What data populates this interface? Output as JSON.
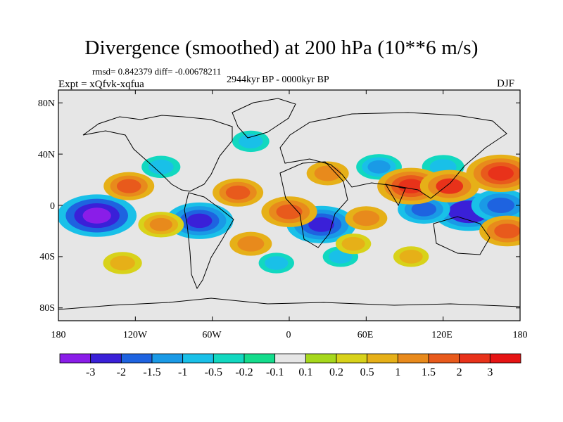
{
  "title": "Divergence (smoothed) at 200 hPa (10**6 m/s)",
  "stats": "rmsd= 0.842379 diff= -0.00678211",
  "experiment": "Expt = xQfvk-xqfua",
  "period": "2944kyr BP - 0000kyr BP",
  "season": "DJF",
  "lat_labels": [
    "80N",
    "40N",
    "0",
    "40S",
    "80S"
  ],
  "lon_labels": [
    "180",
    "120W",
    "60W",
    "0",
    "60E",
    "120E",
    "180"
  ],
  "colorbar": {
    "labels": [
      "-3",
      "-2",
      "-1.5",
      "-1",
      "-0.5",
      "-0.2",
      "-0.1",
      "0.1",
      "0.2",
      "0.5",
      "1",
      "1.5",
      "2",
      "3"
    ],
    "colors": [
      "#8a1de8",
      "#3a20d8",
      "#1e63e0",
      "#1a9ae6",
      "#19c0e8",
      "#12d8c0",
      "#14dc8c",
      "#e6e6e6",
      "#a6d81c",
      "#d8d21a",
      "#e6b018",
      "#e88a1c",
      "#e85a1c",
      "#e8321a",
      "#e61414"
    ]
  },
  "chart_data": {
    "type": "heatmap",
    "title": "Divergence (smoothed) at 200 hPa (10**6 m/s)",
    "variable": "Divergence (smoothed) at 200 hPa",
    "units": "10**6 m/s",
    "season": "DJF",
    "x_range": [
      -180,
      180
    ],
    "y_range": [
      -90,
      90
    ],
    "x_ticks": [
      "180",
      "120W",
      "60W",
      "0",
      "60E",
      "120E",
      "180"
    ],
    "y_ticks": [
      "80N",
      "40N",
      "0",
      "40S",
      "80S"
    ],
    "levels": [
      -3,
      -2,
      -1.5,
      -1,
      -0.5,
      -0.2,
      -0.1,
      0.1,
      0.2,
      0.5,
      1,
      1.5,
      2,
      3
    ],
    "features": [
      {
        "lon": -150,
        "lat": -8,
        "value": -3.2
      },
      {
        "lon": -70,
        "lat": -12,
        "value": -2.5
      },
      {
        "lon": 25,
        "lat": -15,
        "value": -2.6
      },
      {
        "lon": 140,
        "lat": -5,
        "value": -2.7
      },
      {
        "lon": 165,
        "lat": 0,
        "value": -2.0
      },
      {
        "lon": 105,
        "lat": -3,
        "value": -1.6
      },
      {
        "lon": 70,
        "lat": 30,
        "value": -1.2
      },
      {
        "lon": 120,
        "lat": 30,
        "value": -1.0
      },
      {
        "lon": -100,
        "lat": 30,
        "value": -0.8
      },
      {
        "lon": -30,
        "lat": 50,
        "value": -0.7
      },
      {
        "lon": 40,
        "lat": -40,
        "value": -0.6
      },
      {
        "lon": -10,
        "lat": -45,
        "value": -0.6
      },
      {
        "lon": -130,
        "lat": -45,
        "value": 0.8
      },
      {
        "lon": -30,
        "lat": -30,
        "value": 1.0
      },
      {
        "lon": -100,
        "lat": -15,
        "value": 1.2
      },
      {
        "lon": -125,
        "lat": 15,
        "value": 1.5
      },
      {
        "lon": -40,
        "lat": 10,
        "value": 1.5
      },
      {
        "lon": 0,
        "lat": -5,
        "value": 1.8
      },
      {
        "lon": 60,
        "lat": -10,
        "value": 1.0
      },
      {
        "lon": 95,
        "lat": 15,
        "value": 2.5
      },
      {
        "lon": 125,
        "lat": 15,
        "value": 2.0
      },
      {
        "lon": 165,
        "lat": 25,
        "value": 2.6
      },
      {
        "lon": 170,
        "lat": -20,
        "value": 1.8
      },
      {
        "lon": 30,
        "lat": 25,
        "value": 1.0
      },
      {
        "lon": 95,
        "lat": -40,
        "value": 0.6
      },
      {
        "lon": 50,
        "lat": -30,
        "value": 0.6
      }
    ]
  }
}
